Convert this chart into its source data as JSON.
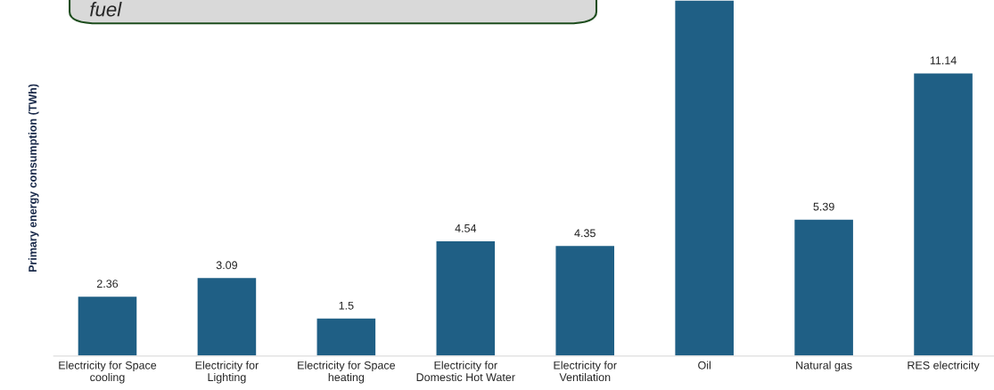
{
  "chart_data": {
    "type": "bar",
    "ylabel": "Primary energy consumption (TWh)",
    "categories": [
      "Electricity for Space cooling",
      "Electricity for Lighting",
      "Electricity for Space heating",
      "Electricity for Domestic Hot Water",
      "Electricity for Ventilation",
      "Oil",
      "Natural gas",
      "RES electricity"
    ],
    "values": [
      2.36,
      3.09,
      1.5,
      4.54,
      4.35,
      14.0,
      5.39,
      11.14
    ],
    "value_labels": [
      "2.36",
      "3.09",
      "1.5",
      "4.54",
      "4.35",
      null,
      "5.39",
      "11.14"
    ],
    "color": "#1f5f85",
    "ylim": [
      0,
      14
    ],
    "tick_labels": "x",
    "grid": false,
    "annotations": [
      "fuel"
    ]
  }
}
